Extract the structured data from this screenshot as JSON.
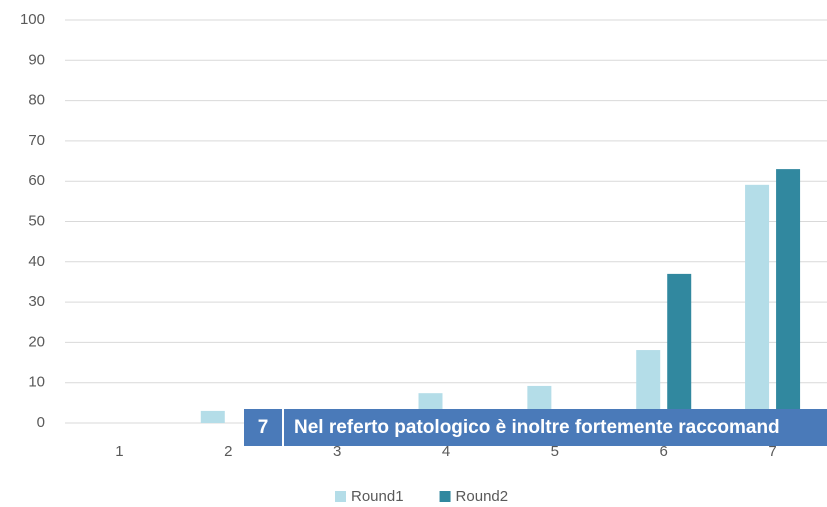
{
  "chart_data": {
    "type": "bar",
    "categories": [
      "1",
      "2",
      "3",
      "4",
      "5",
      "6",
      "7"
    ],
    "series": [
      {
        "name": "Round1",
        "color": "#b4dde8",
        "values": [
          0,
          3,
          0,
          7.4,
          9.2,
          18.1,
          59.1
        ]
      },
      {
        "name": "Round2",
        "color": "#31889f",
        "values": [
          0,
          0,
          0,
          0,
          0,
          37,
          63
        ]
      }
    ],
    "ylim": [
      0,
      100
    ],
    "yticks": [
      0,
      10,
      20,
      30,
      40,
      50,
      60,
      70,
      80,
      90,
      100
    ],
    "grid": true,
    "legend": "bottom"
  },
  "banner": {
    "number": "7",
    "text": "Nel referto patologico è inoltre fortemente raccomand"
  }
}
